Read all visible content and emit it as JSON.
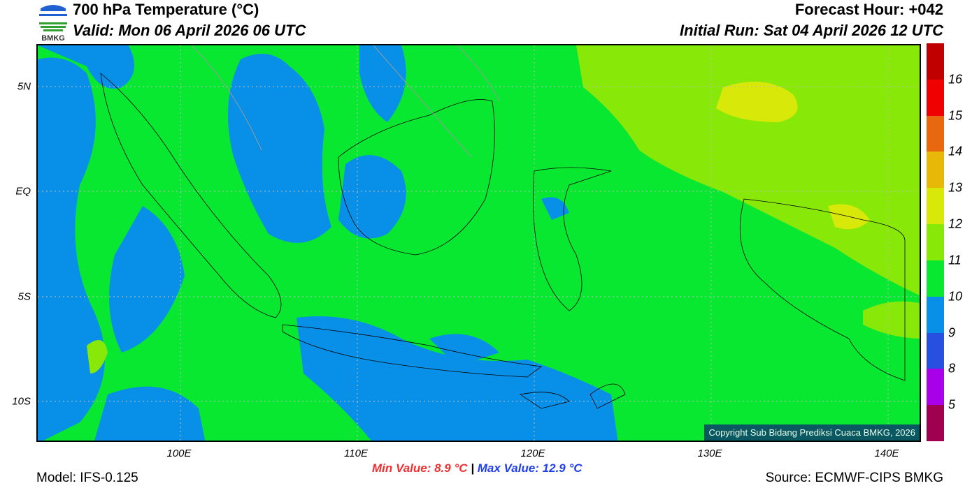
{
  "header": {
    "title": "700 hPa Temperature (°C)",
    "valid": "Valid: Mon 06 April 2026 06 UTC",
    "forecast_hour": "Forecast Hour: +042",
    "initial_run": "Initial Run: Sat 04 April 2026 12 UTC",
    "logo_text": "BMKG"
  },
  "map": {
    "lat_labels": [
      "5N",
      "EQ",
      "5S",
      "10S"
    ],
    "lon_labels": [
      "100E",
      "110E",
      "120E",
      "130E",
      "140E"
    ],
    "copyright": "Copyright Sub Bidang Prediksi Cuaca BMKG, 2026"
  },
  "colorbar": {
    "colors": [
      "#c00000",
      "#f00000",
      "#e86810",
      "#e8b808",
      "#d8e808",
      "#88e808",
      "#08e830",
      "#0890e8",
      "#2850e0",
      "#a800e8",
      "#a00050"
    ],
    "labels": [
      "16",
      "15",
      "14",
      "13",
      "12",
      "11",
      "10",
      "9",
      "8",
      "5"
    ]
  },
  "footer": {
    "model": "Model: IFS-0.125",
    "min": "Min Value: 8.9 °C",
    "separator": "|",
    "max": "Max Value: 12.9 °C",
    "source": "Source: ECMWF-CIPS BMKG"
  }
}
